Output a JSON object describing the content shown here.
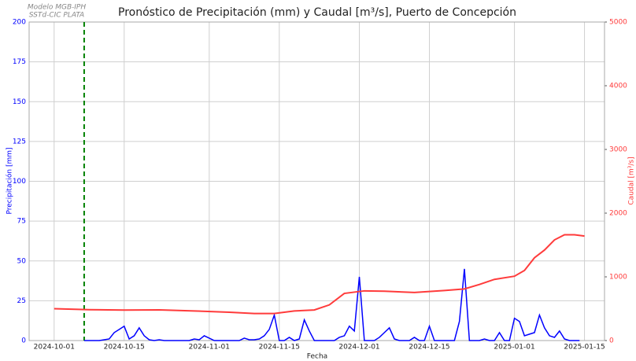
{
  "chart_data": {
    "type": "line",
    "title": "Pronóstico de Precipitación (mm) y Caudal [m³/s], Puerto de Concepción",
    "annotation": [
      "Modelo MGB-IPH",
      "SSTd-CIC PLATA"
    ],
    "xlabel": "Fecha",
    "ylabel": "Precipitación [mm]",
    "y2label": "Caudal [m³/s]",
    "xlim": [
      "2024-09-26",
      "2025-01-19"
    ],
    "xticks": [
      "2024-10-01",
      "2024-10-15",
      "2024-11-01",
      "2024-11-15",
      "2024-12-01",
      "2024-12-15",
      "2025-01-01",
      "2025-01-15"
    ],
    "ylim": [
      0,
      200
    ],
    "yticks": [
      0,
      25,
      50,
      75,
      100,
      125,
      150,
      175,
      200
    ],
    "y2lim": [
      0,
      5000
    ],
    "y2ticks": [
      0,
      1000,
      2000,
      3000,
      4000,
      5000
    ],
    "grid": true,
    "vline": {
      "x": "2024-10-07",
      "color": "#008000"
    },
    "series": [
      {
        "name": "Precipitación",
        "color": "#0000ff",
        "axis": "y",
        "x": [
          "2024-10-07",
          "2024-10-08",
          "2024-10-09",
          "2024-10-10",
          "2024-10-11",
          "2024-10-12",
          "2024-10-13",
          "2024-10-14",
          "2024-10-15",
          "2024-10-16",
          "2024-10-17",
          "2024-10-18",
          "2024-10-19",
          "2024-10-20",
          "2024-10-21",
          "2024-10-22",
          "2024-10-23",
          "2024-10-24",
          "2024-10-25",
          "2024-10-26",
          "2024-10-27",
          "2024-10-28",
          "2024-10-29",
          "2024-10-30",
          "2024-10-31",
          "2024-11-01",
          "2024-11-02",
          "2024-11-03",
          "2024-11-04",
          "2024-11-05",
          "2024-11-06",
          "2024-11-07",
          "2024-11-08",
          "2024-11-09",
          "2024-11-10",
          "2024-11-11",
          "2024-11-12",
          "2024-11-13",
          "2024-11-14",
          "2024-11-15",
          "2024-11-16",
          "2024-11-17",
          "2024-11-18",
          "2024-11-19",
          "2024-11-20",
          "2024-11-21",
          "2024-11-22",
          "2024-11-23",
          "2024-11-24",
          "2024-11-25",
          "2024-11-26",
          "2024-11-27",
          "2024-11-28",
          "2024-11-29",
          "2024-11-30",
          "2024-12-01",
          "2024-12-02",
          "2024-12-03",
          "2024-12-04",
          "2024-12-05",
          "2024-12-06",
          "2024-12-07",
          "2024-12-08",
          "2024-12-09",
          "2024-12-10",
          "2024-12-11",
          "2024-12-12",
          "2024-12-13",
          "2024-12-14",
          "2024-12-15",
          "2024-12-16",
          "2024-12-17",
          "2024-12-18",
          "2024-12-19",
          "2024-12-20",
          "2024-12-21",
          "2024-12-22",
          "2024-12-23",
          "2024-12-24",
          "2024-12-25",
          "2024-12-26",
          "2024-12-27",
          "2024-12-28",
          "2024-12-29",
          "2024-12-30",
          "2024-12-31",
          "2025-01-01",
          "2025-01-02",
          "2025-01-03",
          "2025-01-04",
          "2025-01-05",
          "2025-01-06",
          "2025-01-07",
          "2025-01-08",
          "2025-01-09",
          "2025-01-10",
          "2025-01-11",
          "2025-01-12",
          "2025-01-13",
          "2025-01-14"
        ],
        "values": [
          0,
          0,
          0,
          0,
          0.5,
          1,
          5,
          7,
          9,
          1,
          3,
          8,
          3,
          0.5,
          0,
          0.5,
          0,
          0,
          0,
          0,
          0,
          0,
          1,
          0.5,
          3,
          1.5,
          0,
          0,
          0,
          0,
          0,
          0,
          1.5,
          0.5,
          0.5,
          1,
          3,
          7,
          16,
          0,
          0,
          2,
          0,
          1,
          13,
          6,
          0,
          0,
          0,
          0,
          0,
          2,
          3,
          9,
          6,
          40,
          0,
          0,
          0,
          2,
          5,
          8,
          1,
          0,
          0,
          0,
          2,
          0,
          0,
          9,
          0,
          0,
          0,
          0,
          0,
          12,
          45,
          0,
          0,
          0,
          1,
          0,
          0,
          5,
          0,
          0,
          14,
          12,
          3,
          4,
          5,
          16,
          8,
          3,
          2,
          6,
          1,
          0,
          0,
          0
        ]
      },
      {
        "name": "Caudal",
        "color": "#ff3b3b",
        "axis": "y2",
        "x": [
          "2024-10-01",
          "2024-10-08",
          "2024-10-15",
          "2024-10-22",
          "2024-10-29",
          "2024-11-05",
          "2024-11-10",
          "2024-11-14",
          "2024-11-18",
          "2024-11-22",
          "2024-11-25",
          "2024-11-28",
          "2024-12-02",
          "2024-12-06",
          "2024-12-12",
          "2024-12-18",
          "2024-12-22",
          "2024-12-25",
          "2024-12-28",
          "2025-01-01",
          "2025-01-03",
          "2025-01-05",
          "2025-01-07",
          "2025-01-09",
          "2025-01-11",
          "2025-01-13",
          "2025-01-15"
        ],
        "values": [
          500,
          485,
          478,
          482,
          465,
          445,
          425,
          425,
          465,
          480,
          560,
          740,
          780,
          775,
          755,
          785,
          810,
          880,
          960,
          1010,
          1100,
          1300,
          1420,
          1580,
          1660,
          1660,
          1640
        ]
      }
    ]
  }
}
